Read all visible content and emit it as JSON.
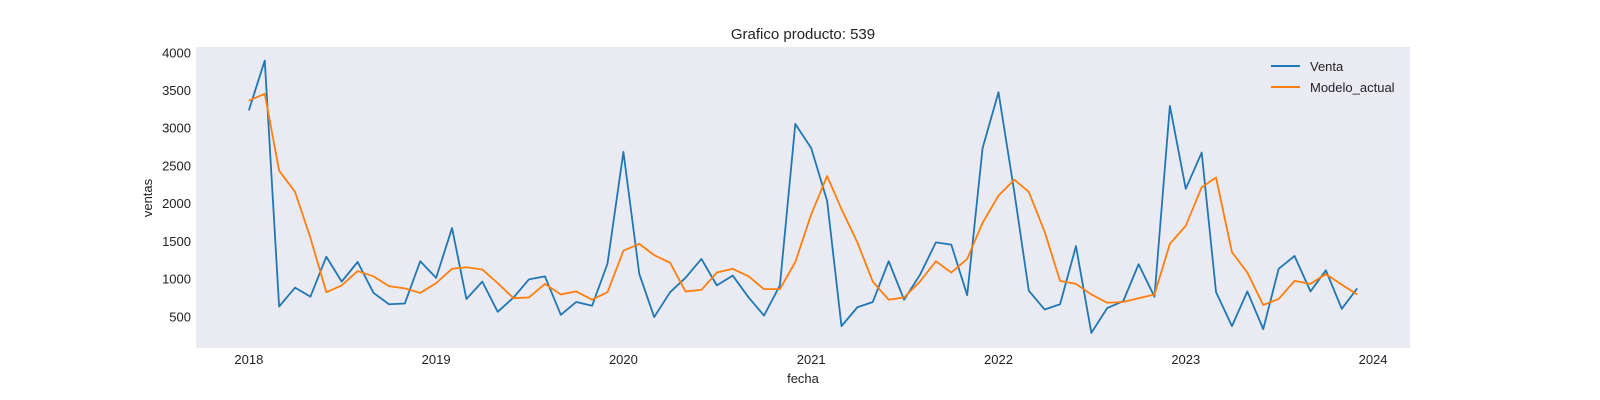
{
  "chart_data": {
    "type": "line",
    "title": "Grafico producto: 539",
    "xlabel": "fecha",
    "ylabel": "ventas",
    "x_ticks": [
      "2018",
      "2019",
      "2020",
      "2021",
      "2022",
      "2023",
      "2024"
    ],
    "y_ticks": [
      "500",
      "1000",
      "1500",
      "2000",
      "2500",
      "3000",
      "3500",
      "4000"
    ],
    "xlim": [
      "2017-09-20",
      "2024-03-13"
    ],
    "ylim": [
      80,
      4070
    ],
    "grid": false,
    "legend_position": "top-right",
    "background": "#eaeaf2",
    "x": [
      "2018-01",
      "2018-02",
      "2018-03",
      "2018-04",
      "2018-05",
      "2018-06",
      "2018-07",
      "2018-08",
      "2018-09",
      "2018-10",
      "2018-11",
      "2018-12",
      "2019-01",
      "2019-02",
      "2019-03",
      "2019-04",
      "2019-05",
      "2019-06",
      "2019-07",
      "2019-08",
      "2019-09",
      "2019-10",
      "2019-11",
      "2019-12",
      "2020-01",
      "2020-02",
      "2020-03",
      "2020-04",
      "2020-05",
      "2020-06",
      "2020-07",
      "2020-08",
      "2020-09",
      "2020-10",
      "2020-11",
      "2020-12",
      "2021-01",
      "2021-02",
      "2021-03",
      "2021-04",
      "2021-05",
      "2021-06",
      "2021-07",
      "2021-08",
      "2021-09",
      "2021-10",
      "2021-11",
      "2021-12",
      "2022-01",
      "2022-02",
      "2022-03",
      "2022-04",
      "2022-05",
      "2022-06",
      "2022-07",
      "2022-08",
      "2022-09",
      "2022-10",
      "2022-11",
      "2022-12",
      "2023-01",
      "2023-02",
      "2023-03",
      "2023-04",
      "2023-05",
      "2023-06",
      "2023-07",
      "2023-08",
      "2023-09",
      "2023-10",
      "2023-11",
      "2023-12"
    ],
    "series": [
      {
        "name": "Venta",
        "color": "#1f77b4",
        "values": [
          3230,
          3890,
          630,
          880,
          760,
          1290,
          960,
          1220,
          810,
          660,
          670,
          1230,
          1010,
          1670,
          730,
          960,
          560,
          750,
          990,
          1030,
          520,
          690,
          640,
          1200,
          2680,
          1060,
          490,
          820,
          1010,
          1260,
          910,
          1040,
          750,
          510,
          910,
          3050,
          2730,
          2030,
          370,
          620,
          690,
          1230,
          720,
          1050,
          1480,
          1450,
          780,
          2730,
          3470,
          2140,
          840,
          590,
          660,
          1430,
          280,
          610,
          700,
          1190,
          760,
          3290,
          2190,
          2670,
          820,
          370,
          830,
          330,
          1130,
          1300,
          830,
          1110,
          600,
          870
        ]
      },
      {
        "name": "Modelo_actual",
        "color": "#ff7f0e",
        "values": [
          3360,
          3450,
          2430,
          2150,
          1540,
          820,
          910,
          1100,
          1030,
          900,
          870,
          810,
          940,
          1130,
          1150,
          1120,
          940,
          740,
          750,
          930,
          790,
          830,
          720,
          820,
          1370,
          1460,
          1310,
          1210,
          830,
          850,
          1080,
          1130,
          1030,
          860,
          860,
          1220,
          1850,
          2360,
          1920,
          1480,
          960,
          720,
          750,
          960,
          1230,
          1080,
          1260,
          1740,
          2100,
          2310,
          2150,
          1620,
          970,
          930,
          790,
          680,
          690,
          740,
          790,
          1460,
          1700,
          2210,
          2340,
          1350,
          1080,
          650,
          730,
          970,
          930,
          1060,
          920,
          790
        ]
      }
    ]
  }
}
